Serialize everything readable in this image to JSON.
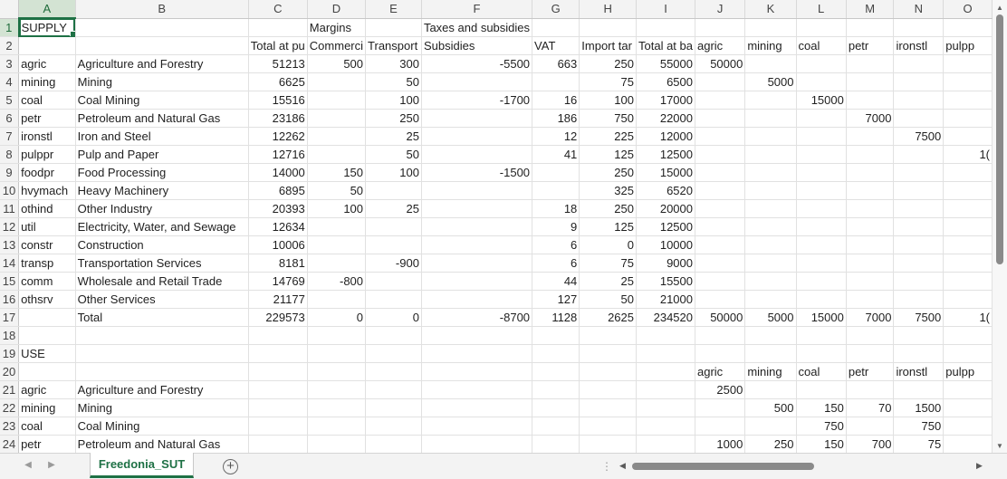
{
  "columns": [
    "A",
    "B",
    "C",
    "D",
    "E",
    "F",
    "G",
    "H",
    "I",
    "J",
    "K",
    "L",
    "M",
    "N",
    "O"
  ],
  "active_cell": "A1",
  "rows": [
    [
      "SUPPLY",
      "",
      "",
      "Margins",
      "",
      "Taxes and subsidies",
      "",
      "",
      "",
      "",
      "",
      "",
      "",
      "",
      ""
    ],
    [
      "",
      "",
      "Total at pu",
      "Commerci",
      "Transport",
      "Subsidies",
      "VAT",
      "Import tar",
      "Total at ba",
      "agric",
      "mining",
      "coal",
      "petr",
      "ironstl",
      "pulpp"
    ],
    [
      "agric",
      "Agriculture and Forestry",
      "51213",
      "500",
      "300",
      "-5500",
      "663",
      "250",
      "55000",
      "50000",
      "",
      "",
      "",
      "",
      ""
    ],
    [
      "mining",
      "Mining",
      "6625",
      "",
      "50",
      "",
      "",
      "75",
      "6500",
      "",
      "5000",
      "",
      "",
      "",
      ""
    ],
    [
      "coal",
      "Coal Mining",
      "15516",
      "",
      "100",
      "-1700",
      "16",
      "100",
      "17000",
      "",
      "",
      "15000",
      "",
      "",
      ""
    ],
    [
      "petr",
      "Petroleum and Natural Gas",
      "23186",
      "",
      "250",
      "",
      "186",
      "750",
      "22000",
      "",
      "",
      "",
      "7000",
      "",
      ""
    ],
    [
      "ironstl",
      "Iron and Steel",
      "12262",
      "",
      "25",
      "",
      "12",
      "225",
      "12000",
      "",
      "",
      "",
      "",
      "7500",
      ""
    ],
    [
      "pulppr",
      "Pulp and Paper",
      "12716",
      "",
      "50",
      "",
      "41",
      "125",
      "12500",
      "",
      "",
      "",
      "",
      "",
      "1("
    ],
    [
      "foodpr",
      "Food Processing",
      "14000",
      "150",
      "100",
      "-1500",
      "",
      "250",
      "15000",
      "",
      "",
      "",
      "",
      "",
      ""
    ],
    [
      "hvymach",
      "Heavy Machinery",
      "6895",
      "50",
      "",
      "",
      "",
      "325",
      "6520",
      "",
      "",
      "",
      "",
      "",
      ""
    ],
    [
      "othind",
      "Other Industry",
      "20393",
      "100",
      "25",
      "",
      "18",
      "250",
      "20000",
      "",
      "",
      "",
      "",
      "",
      ""
    ],
    [
      "util",
      "Electricity, Water, and Sewage",
      "12634",
      "",
      "",
      "",
      "9",
      "125",
      "12500",
      "",
      "",
      "",
      "",
      "",
      ""
    ],
    [
      "constr",
      "Construction",
      "10006",
      "",
      "",
      "",
      "6",
      "0",
      "10000",
      "",
      "",
      "",
      "",
      "",
      ""
    ],
    [
      "transp",
      "Transportation Services",
      "8181",
      "",
      "-900",
      "",
      "6",
      "75",
      "9000",
      "",
      "",
      "",
      "",
      "",
      ""
    ],
    [
      "comm",
      "Wholesale and Retail Trade",
      "14769",
      "-800",
      "",
      "",
      "44",
      "25",
      "15500",
      "",
      "",
      "",
      "",
      "",
      ""
    ],
    [
      "othsrv",
      "Other Services",
      "21177",
      "",
      "",
      "",
      "127",
      "50",
      "21000",
      "",
      "",
      "",
      "",
      "",
      ""
    ],
    [
      "",
      "Total",
      "229573",
      "0",
      "0",
      "-8700",
      "1128",
      "2625",
      "234520",
      "50000",
      "5000",
      "15000",
      "7000",
      "7500",
      "1("
    ],
    [
      "",
      "",
      "",
      "",
      "",
      "",
      "",
      "",
      "",
      "",
      "",
      "",
      "",
      "",
      ""
    ],
    [
      "USE",
      "",
      "",
      "",
      "",
      "",
      "",
      "",
      "",
      "",
      "",
      "",
      "",
      "",
      ""
    ],
    [
      "",
      "",
      "",
      "",
      "",
      "",
      "",
      "",
      "",
      "agric",
      "mining",
      "coal",
      "petr",
      "ironstl",
      "pulpp"
    ],
    [
      "agric",
      "Agriculture and Forestry",
      "",
      "",
      "",
      "",
      "",
      "",
      "",
      "2500",
      "",
      "",
      "",
      "",
      ""
    ],
    [
      "mining",
      "Mining",
      "",
      "",
      "",
      "",
      "",
      "",
      "",
      "",
      "500",
      "150",
      "70",
      "1500",
      ""
    ],
    [
      "coal",
      "Coal Mining",
      "",
      "",
      "",
      "",
      "",
      "",
      "",
      "",
      "",
      "750",
      "",
      "750",
      ""
    ],
    [
      "petr",
      "Petroleum and Natural Gas",
      "",
      "",
      "",
      "",
      "",
      "",
      "",
      "1000",
      "250",
      "150",
      "700",
      "75",
      ""
    ]
  ],
  "sheet_tab": "Freedonia_SUT",
  "icons": {
    "add_sheet": "plus-circle-icon",
    "prev_sheet": "chevron-left-icon",
    "next_sheet": "chevron-right-icon"
  },
  "colors": {
    "accent": "#1e7145",
    "header_bg": "#f3f3f3",
    "gridline": "#e1e1e1"
  }
}
